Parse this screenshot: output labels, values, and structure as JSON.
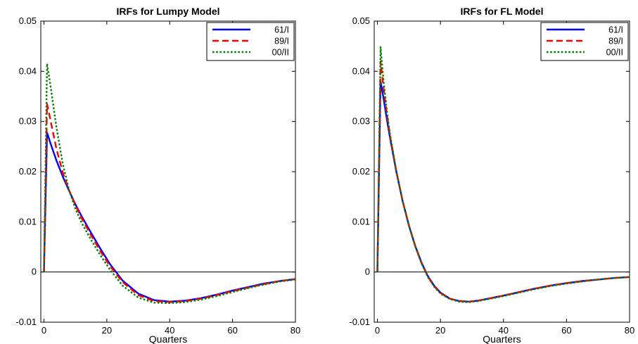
{
  "chart_data": [
    {
      "type": "line",
      "title": "IRFs for Lumpy Model",
      "xlabel": "Quarters",
      "ylabel": "",
      "xlim": [
        -1,
        80
      ],
      "ylim": [
        -0.01,
        0.05
      ],
      "xticks": [
        "0",
        "20",
        "40",
        "60",
        "80"
      ],
      "yticks": [
        "-0.01",
        "0",
        "0.01",
        "0.02",
        "0.03",
        "0.04",
        "0.05"
      ],
      "grid": false,
      "zero_line": true,
      "legend": "top-right",
      "series": [
        {
          "name": "61/I",
          "color": "#0000ff",
          "style": "solid",
          "x": [
            0,
            1,
            2,
            4,
            6,
            8,
            10,
            12,
            15,
            18,
            21,
            25,
            30,
            35,
            40,
            45,
            50,
            55,
            60,
            65,
            70,
            75,
            80
          ],
          "y": [
            0,
            0.0278,
            0.0258,
            0.0222,
            0.019,
            0.0162,
            0.0135,
            0.0111,
            0.0078,
            0.0046,
            0.0016,
            -0.0017,
            -0.0043,
            -0.0056,
            -0.0059,
            -0.0057,
            -0.0052,
            -0.0045,
            -0.0037,
            -0.003,
            -0.0023,
            -0.0018,
            -0.0014
          ]
        },
        {
          "name": "89/I",
          "color": "#ff0000",
          "style": "dashed",
          "x": [
            0,
            1,
            2,
            4,
            6,
            8,
            10,
            12,
            15,
            18,
            21,
            25,
            30,
            35,
            40,
            45,
            50,
            55,
            60,
            65,
            70,
            75,
            80
          ],
          "y": [
            0,
            0.0335,
            0.0305,
            0.0245,
            0.0198,
            0.0163,
            0.0133,
            0.0107,
            0.0073,
            0.0041,
            0.0012,
            -0.002,
            -0.0046,
            -0.0058,
            -0.006,
            -0.0058,
            -0.0053,
            -0.0046,
            -0.0038,
            -0.0031,
            -0.0024,
            -0.0018,
            -0.0014
          ]
        },
        {
          "name": "00/II",
          "color": "#008000",
          "style": "dotted",
          "x": [
            0,
            1,
            2,
            4,
            6,
            8,
            10,
            12,
            15,
            18,
            21,
            25,
            30,
            35,
            40,
            45,
            50,
            55,
            60,
            65,
            70,
            75,
            80
          ],
          "y": [
            0,
            0.0415,
            0.0375,
            0.0288,
            0.0215,
            0.0163,
            0.0126,
            0.0098,
            0.0064,
            0.0033,
            0.0005,
            -0.0027,
            -0.0051,
            -0.0061,
            -0.0062,
            -0.006,
            -0.0055,
            -0.0048,
            -0.004,
            -0.0032,
            -0.0025,
            -0.0019,
            -0.0015
          ]
        }
      ]
    },
    {
      "type": "line",
      "title": "IRFs for FL Model",
      "xlabel": "Quarters",
      "ylabel": "",
      "xlim": [
        -1,
        80
      ],
      "ylim": [
        -0.01,
        0.05
      ],
      "xticks": [
        "0",
        "20",
        "40",
        "60",
        "80"
      ],
      "yticks": [
        "-0.01",
        "0",
        "0.01",
        "0.02",
        "0.03",
        "0.04",
        "0.05"
      ],
      "grid": false,
      "zero_line": true,
      "legend": "top-right",
      "series": [
        {
          "name": "61/I",
          "color": "#0000ff",
          "style": "solid",
          "x": [
            0,
            1,
            2,
            3,
            4,
            6,
            8,
            10,
            12,
            14,
            16,
            18,
            20,
            23,
            26,
            29,
            32,
            36,
            40,
            45,
            50,
            55,
            60,
            65,
            70,
            75,
            80
          ],
          "y": [
            0,
            0.038,
            0.0345,
            0.0305,
            0.0268,
            0.02,
            0.0142,
            0.0093,
            0.0052,
            0.0019,
            -0.0008,
            -0.0027,
            -0.0041,
            -0.0053,
            -0.0058,
            -0.0059,
            -0.0057,
            -0.0052,
            -0.0047,
            -0.004,
            -0.0033,
            -0.0027,
            -0.0022,
            -0.0018,
            -0.0015,
            -0.0012,
            -0.001
          ]
        },
        {
          "name": "89/I",
          "color": "#ff0000",
          "style": "dashed",
          "x": [
            0,
            1,
            2,
            3,
            4,
            6,
            8,
            10,
            12,
            14,
            16,
            18,
            20,
            23,
            26,
            29,
            32,
            36,
            40,
            45,
            50,
            55,
            60,
            65,
            70,
            75,
            80
          ],
          "y": [
            0,
            0.042,
            0.0365,
            0.0316,
            0.0272,
            0.0201,
            0.0142,
            0.0093,
            0.0052,
            0.0018,
            -0.0009,
            -0.0028,
            -0.0042,
            -0.0053,
            -0.0058,
            -0.0059,
            -0.0057,
            -0.0052,
            -0.0047,
            -0.004,
            -0.0033,
            -0.0027,
            -0.0022,
            -0.0018,
            -0.0015,
            -0.0012,
            -0.001
          ]
        },
        {
          "name": "00/II",
          "color": "#008000",
          "style": "dotted",
          "x": [
            0,
            1,
            2,
            3,
            4,
            6,
            8,
            10,
            12,
            14,
            16,
            18,
            20,
            23,
            26,
            29,
            32,
            36,
            40,
            45,
            50,
            55,
            60,
            65,
            70,
            75,
            80
          ],
          "y": [
            0,
            0.0448,
            0.0378,
            0.0322,
            0.0275,
            0.0202,
            0.0142,
            0.0092,
            0.0051,
            0.0017,
            -0.001,
            -0.0029,
            -0.0043,
            -0.0054,
            -0.0059,
            -0.006,
            -0.0058,
            -0.0053,
            -0.0048,
            -0.0041,
            -0.0034,
            -0.0028,
            -0.0023,
            -0.0019,
            -0.0015,
            -0.0012,
            -0.001
          ]
        }
      ]
    }
  ]
}
